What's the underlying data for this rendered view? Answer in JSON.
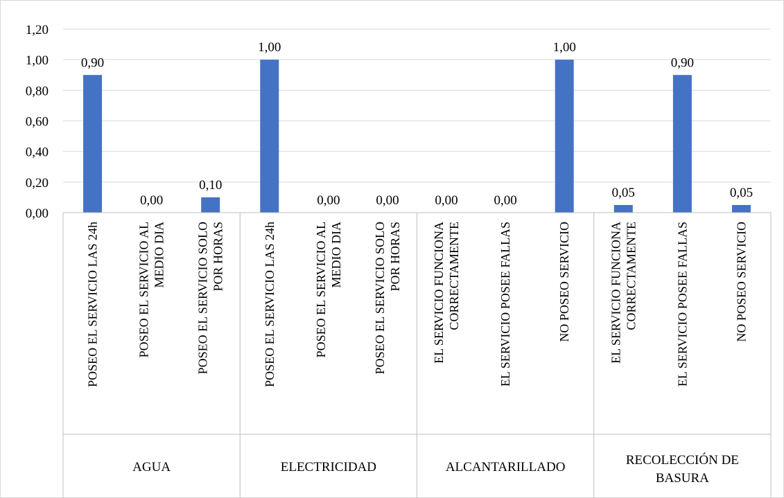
{
  "chart_data": {
    "type": "bar",
    "title": "",
    "xlabel": "",
    "ylabel": "",
    "ylim": [
      0,
      1.2
    ],
    "yticks": [
      "0,00",
      "0,20",
      "0,40",
      "0,60",
      "0,80",
      "1,00",
      "1,20"
    ],
    "grid": true,
    "legend": "none",
    "bar_color": "#4472c4",
    "groups": [
      {
        "name": "AGUA",
        "name_lines": [
          "AGUA"
        ],
        "categories": [
          {
            "lines": [
              "POSEO EL SERVICIO LAS 24h"
            ],
            "value": 0.9,
            "label": "0,90"
          },
          {
            "lines": [
              "POSEO EL SERVICIO AL",
              "MEDIO DIA"
            ],
            "value": 0.0,
            "label": "0,00"
          },
          {
            "lines": [
              "POSEO EL SERVICIO SOLO",
              "POR HORAS"
            ],
            "value": 0.1,
            "label": "0,10"
          }
        ]
      },
      {
        "name": "ELECTRICIDAD",
        "name_lines": [
          "ELECTRICIDAD"
        ],
        "categories": [
          {
            "lines": [
              "POSEO EL SERVICIO LAS 24h"
            ],
            "value": 1.0,
            "label": "1,00"
          },
          {
            "lines": [
              "POSEO EL SERVICIO AL",
              "MEDIO DIA"
            ],
            "value": 0.0,
            "label": "0,00"
          },
          {
            "lines": [
              "POSEO EL SERVICIO SOLO",
              "POR HORAS"
            ],
            "value": 0.0,
            "label": "0,00"
          }
        ]
      },
      {
        "name": "ALCANTARILLADO",
        "name_lines": [
          "ALCANTARILLADO"
        ],
        "categories": [
          {
            "lines": [
              "EL SERVICIO FUNCIONA",
              "CORRECTAMENTE"
            ],
            "value": 0.0,
            "label": "0,00"
          },
          {
            "lines": [
              "EL SERVICIO POSEE FALLAS"
            ],
            "value": 0.0,
            "label": "0,00"
          },
          {
            "lines": [
              "NO POSEO SERVICIO"
            ],
            "value": 1.0,
            "label": "1,00"
          }
        ]
      },
      {
        "name": "RECOLECCIÓN DE BASURA",
        "name_lines": [
          "RECOLECCIÓN DE",
          "BASURA"
        ],
        "categories": [
          {
            "lines": [
              "EL SERVICIO FUNCIONA",
              "CORRECTAMENTE"
            ],
            "value": 0.05,
            "label": "0,05"
          },
          {
            "lines": [
              "EL SERVICIO POSEE FALLAS"
            ],
            "value": 0.9,
            "label": "0,90"
          },
          {
            "lines": [
              "NO POSEO SERVICIO"
            ],
            "value": 0.05,
            "label": "0,05"
          }
        ]
      }
    ]
  }
}
